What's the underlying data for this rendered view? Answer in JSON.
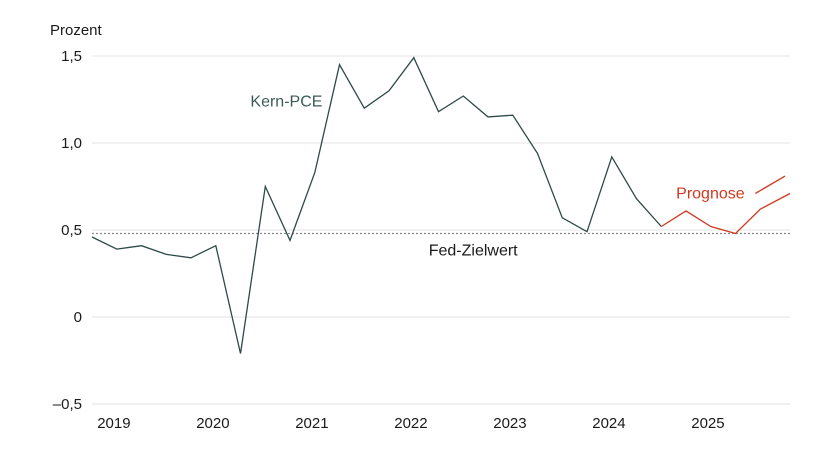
{
  "chart_data": {
    "type": "line",
    "unit_label": "Prozent",
    "y_ticks": [
      "1,5",
      "1,0",
      "0,5",
      "0",
      "–0,5"
    ],
    "y_tick_values": [
      1.5,
      1.0,
      0.5,
      0,
      -0.5
    ],
    "ylim": [
      -0.5,
      1.5
    ],
    "x_ticks": [
      "2019",
      "2020",
      "2021",
      "2022",
      "2023",
      "2024",
      "2025"
    ],
    "x_tick_values": [
      2019,
      2020,
      2021,
      2022,
      2023,
      2024,
      2025
    ],
    "xlim": [
      2018.9,
      2025.95
    ],
    "reference_line": {
      "label": "Fed-Zielwert",
      "value": 0.48
    },
    "series": [
      {
        "name": "Kern-PCE",
        "color": "#2e4a48",
        "x": [
          2018.9,
          2019.15,
          2019.4,
          2019.65,
          2019.9,
          2020.15,
          2020.4,
          2020.65,
          2020.9,
          2021.15,
          2021.4,
          2021.65,
          2021.9,
          2022.15,
          2022.4,
          2022.65,
          2022.9,
          2023.15,
          2023.4,
          2023.65,
          2023.9,
          2024.15,
          2024.4,
          2024.65
        ],
        "y": [
          0.46,
          0.39,
          0.41,
          0.36,
          0.34,
          0.41,
          -0.21,
          0.75,
          0.44,
          0.83,
          1.45,
          1.2,
          1.3,
          1.49,
          1.18,
          1.27,
          1.15,
          1.16,
          0.94,
          0.57,
          0.49,
          0.92,
          0.68,
          0.52
        ]
      },
      {
        "name": "Prognose",
        "color": "#d0391f",
        "x": [
          2024.65,
          2024.9,
          2025.15,
          2025.4,
          2025.65,
          2025.95
        ],
        "y": [
          0.52,
          0.61,
          0.52,
          0.48,
          0.62,
          0.71
        ]
      }
    ],
    "annotations": [
      "Kern-PCE",
      "Prognose",
      "Fed-Zielwert"
    ],
    "grid": true
  }
}
